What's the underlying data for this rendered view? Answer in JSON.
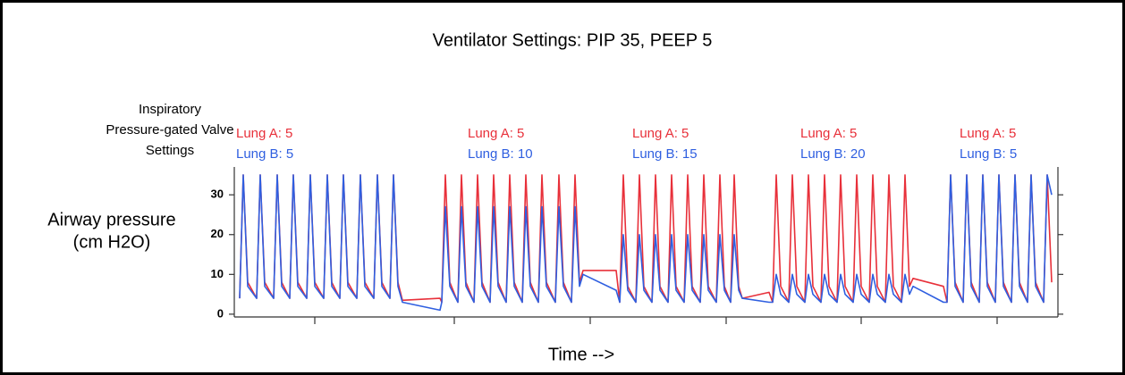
{
  "chart_data": {
    "type": "line",
    "title": "Ventilator Settings:  PIP 35, PEEP 5",
    "settings_label": [
      "Inspiratory",
      "Pressure-gated Valve",
      "Settings"
    ],
    "y_label": [
      "Airway pressure",
      "(cm H2O)"
    ],
    "x_label": "Time -->",
    "segment_labels": [
      {
        "lung_a": "Lung A: 5",
        "lung_b": "Lung B: 5"
      },
      {
        "lung_a": "Lung A: 5",
        "lung_b": "Lung B: 10"
      },
      {
        "lung_a": "Lung A: 5",
        "lung_b": "Lung B: 15"
      },
      {
        "lung_a": "Lung A: 5",
        "lung_b": "Lung B: 20"
      },
      {
        "lung_a": "Lung A: 5",
        "lung_b": "Lung B: 5"
      }
    ],
    "xlim": [
      0,
      921
    ],
    "xticks": [
      90,
      246,
      398,
      550,
      701,
      853
    ],
    "ylim": [
      -0.7,
      37
    ],
    "yticks": [
      0,
      10,
      20,
      30
    ],
    "x": [
      6,
      10,
      15,
      25,
      29,
      34,
      44,
      48,
      53,
      62,
      66,
      71,
      81,
      85,
      90,
      100,
      104,
      109,
      118,
      122,
      127,
      137,
      141,
      146,
      156,
      160,
      165,
      174,
      178,
      183,
      188,
      230,
      232,
      236,
      241,
      250,
      254,
      259,
      268,
      272,
      277,
      286,
      290,
      295,
      304,
      308,
      313,
      322,
      326,
      331,
      340,
      344,
      349,
      359,
      363,
      368,
      377,
      381,
      386,
      390,
      427,
      431,
      435,
      440,
      449,
      453,
      458,
      467,
      471,
      476,
      485,
      489,
      494,
      503,
      507,
      512,
      521,
      525,
      530,
      539,
      543,
      548,
      555,
      559,
      564,
      568,
      598,
      602,
      606,
      611,
      620,
      624,
      629,
      638,
      642,
      647,
      656,
      660,
      665,
      674,
      678,
      683,
      692,
      696,
      701,
      710,
      714,
      719,
      728,
      732,
      737,
      746,
      750,
      755,
      759,
      793,
      797,
      801,
      806,
      815,
      819,
      824,
      833,
      837,
      842,
      851,
      855,
      860,
      869,
      873,
      878,
      887,
      891,
      896,
      905,
      909,
      914
    ],
    "series": [
      {
        "color": "#e8303a",
        "values": [
          4,
          35,
          8,
          4,
          35,
          8,
          4,
          35,
          8,
          4,
          35,
          8,
          4,
          35,
          8,
          4,
          35,
          8,
          4,
          35,
          8,
          4,
          35,
          8,
          4,
          35,
          8,
          4,
          35,
          8,
          3.5,
          4,
          3,
          35,
          8,
          3,
          35,
          8,
          3,
          35,
          8,
          3,
          35,
          8,
          3,
          35,
          8,
          3,
          35,
          8,
          3,
          35,
          8,
          3,
          35,
          8,
          3,
          35,
          8,
          11,
          11,
          3,
          35,
          7,
          3,
          35,
          7,
          3,
          35,
          7,
          3,
          35,
          7,
          3,
          35,
          7,
          3,
          35,
          7,
          3,
          35,
          7,
          3,
          35,
          7,
          4,
          5.5,
          3,
          35,
          7,
          3,
          35,
          7,
          3,
          35,
          7,
          3,
          35,
          7,
          3,
          35,
          7,
          3,
          35,
          7,
          3,
          35,
          7,
          3,
          35,
          7,
          3,
          35,
          7,
          9,
          7,
          3,
          35,
          8,
          3,
          35,
          8,
          3,
          35,
          8,
          3,
          35,
          8,
          3,
          35,
          8,
          3,
          35,
          8,
          3,
          35,
          8
        ]
      },
      {
        "color": "#2f5fe0",
        "values": [
          4,
          35,
          7,
          4,
          35,
          7,
          4,
          35,
          7,
          4,
          35,
          7,
          4,
          35,
          7,
          4,
          35,
          7,
          4,
          35,
          7,
          4,
          35,
          7,
          4,
          35,
          7,
          4,
          35,
          7,
          3,
          1,
          3,
          27,
          7,
          3,
          27,
          7,
          3,
          27,
          7,
          3,
          27,
          7,
          3,
          27,
          7,
          3,
          27,
          7,
          3,
          27,
          7,
          3,
          27,
          7,
          3,
          27,
          7,
          10,
          6,
          3,
          20,
          6,
          3,
          20,
          6,
          3,
          20,
          6,
          3,
          20,
          6,
          3,
          20,
          6,
          3,
          20,
          6,
          3,
          20,
          6,
          3,
          20,
          6,
          4,
          3,
          3,
          10,
          5,
          3,
          10,
          5,
          3,
          10,
          5,
          3,
          10,
          5,
          3,
          10,
          5,
          3,
          10,
          5,
          3,
          10,
          5,
          3,
          10,
          5,
          3,
          10,
          5,
          7,
          3,
          3,
          35,
          7,
          3,
          35,
          7,
          3,
          35,
          7,
          3,
          35,
          7,
          3,
          35,
          7,
          3,
          35,
          7,
          3,
          35,
          30
        ]
      }
    ]
  }
}
